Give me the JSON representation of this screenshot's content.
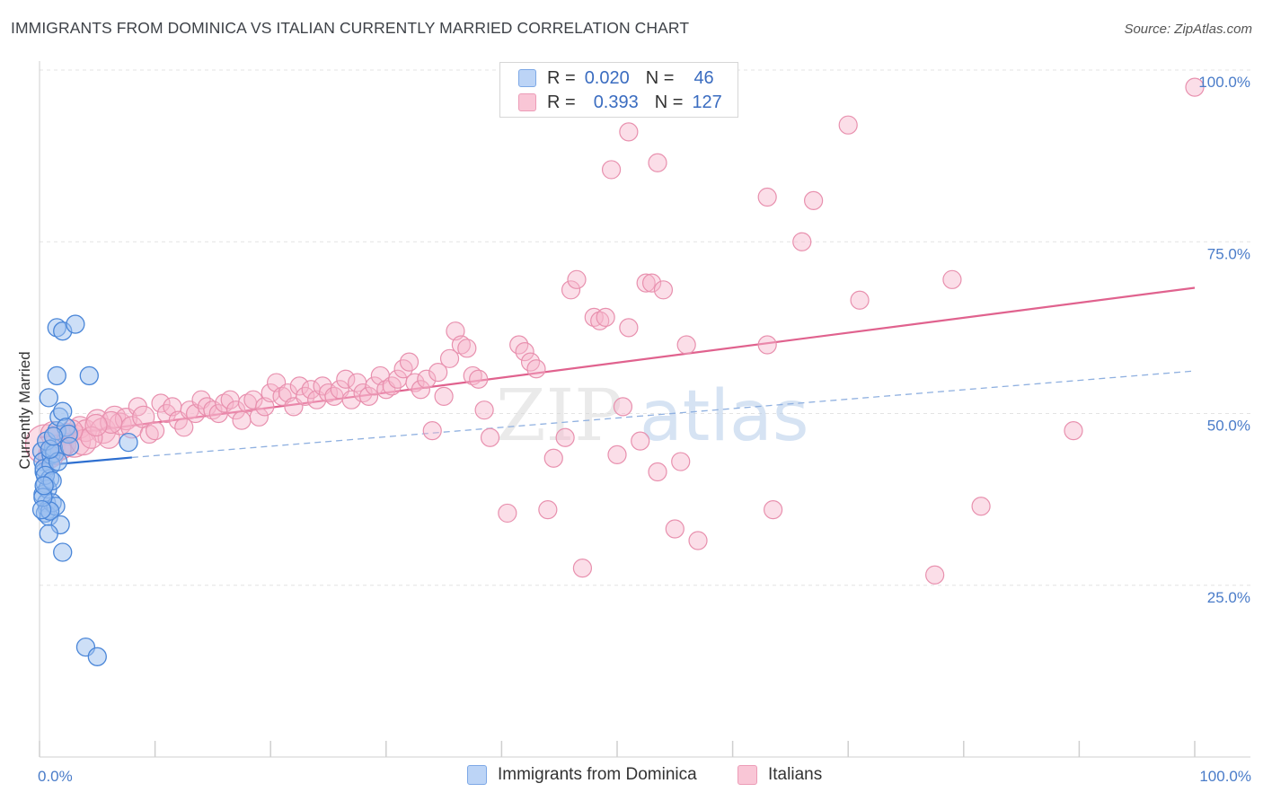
{
  "title": "IMMIGRANTS FROM DOMINICA VS ITALIAN CURRENTLY MARRIED CORRELATION CHART",
  "source": "Source: ZipAtlas.com",
  "watermark": {
    "zip": "ZIP",
    "atlas": "atlas"
  },
  "legend": {
    "series1": {
      "r_label": "R =",
      "r_value": "0.020",
      "n_label": "N =",
      "n_value": "46"
    },
    "series2": {
      "r_label": "R =",
      "r_value": "0.393",
      "n_label": "N =",
      "n_value": "127"
    }
  },
  "bottom_legend": {
    "series1": "Immigrants from Dominica",
    "series2": "Italians"
  },
  "colors": {
    "series1_fill": "#9bbff0",
    "series1_stroke": "#4a86d8",
    "series1_line": "#2e6fd0",
    "series2_fill": "#f6b6cb",
    "series2_stroke": "#e890ae",
    "series2_line": "#e0628e",
    "axis_text": "#4a7cc9",
    "grid": "#e3e3e3"
  },
  "chart_data": {
    "type": "scatter",
    "title": "IMMIGRANTS FROM DOMINICA VS ITALIAN CURRENTLY MARRIED CORRELATION CHART",
    "xlabel": "",
    "ylabel": "Currently Married",
    "xlim": [
      0,
      100
    ],
    "ylim": [
      0,
      100
    ],
    "x_tick_labels": [
      "0.0%",
      "100.0%"
    ],
    "y_ticks": [
      25,
      50,
      75,
      100
    ],
    "y_tick_labels": [
      "25.0%",
      "50.0%",
      "75.0%",
      "100.0%"
    ],
    "grid": true,
    "legend_position": "top-center",
    "series": [
      {
        "name": "Immigrants from Dominica",
        "R": 0.02,
        "N": 46,
        "trend": {
          "x": [
            0,
            8
          ],
          "y": [
            42.4,
            43.6
          ],
          "dashed_extension_to": [
            100,
            56.2
          ]
        },
        "points": [
          [
            0.2,
            44.5,
            10
          ],
          [
            0.3,
            43.0,
            10
          ],
          [
            0.4,
            41.5,
            10
          ],
          [
            0.5,
            39.8,
            10
          ],
          [
            0.3,
            38.2,
            10
          ],
          [
            0.6,
            37.0,
            10
          ],
          [
            0.7,
            36.0,
            10
          ],
          [
            0.5,
            35.5,
            10
          ],
          [
            0.8,
            35.0,
            10
          ],
          [
            0.4,
            42.0,
            10
          ],
          [
            0.9,
            40.5,
            10
          ],
          [
            1.0,
            44.0,
            10
          ],
          [
            1.2,
            45.0,
            10
          ],
          [
            0.6,
            46.0,
            10
          ],
          [
            1.5,
            47.5,
            10
          ],
          [
            1.7,
            49.5,
            10
          ],
          [
            2.0,
            50.3,
            10
          ],
          [
            1.5,
            62.5,
            10
          ],
          [
            2.0,
            62.0,
            10
          ],
          [
            3.1,
            63.0,
            10
          ],
          [
            1.5,
            55.5,
            10
          ],
          [
            4.3,
            55.5,
            10
          ],
          [
            0.8,
            52.3,
            10
          ],
          [
            2.3,
            48.0,
            10
          ],
          [
            2.5,
            47.0,
            10
          ],
          [
            1.3,
            44.2,
            10
          ],
          [
            1.0,
            42.5,
            10
          ],
          [
            1.6,
            43.0,
            10
          ],
          [
            0.7,
            39.0,
            10
          ],
          [
            1.1,
            37.0,
            10
          ],
          [
            1.4,
            36.5,
            10
          ],
          [
            0.9,
            35.8,
            10
          ],
          [
            1.8,
            33.8,
            10
          ],
          [
            0.8,
            32.5,
            10
          ],
          [
            2.0,
            29.8,
            10
          ],
          [
            4.0,
            16.0,
            10
          ],
          [
            5.0,
            14.6,
            10
          ],
          [
            7.7,
            45.8,
            10
          ],
          [
            0.5,
            41.0,
            10
          ],
          [
            1.1,
            40.2,
            10
          ],
          [
            0.3,
            37.8,
            10
          ],
          [
            0.2,
            36.0,
            10
          ],
          [
            0.9,
            44.8,
            10
          ],
          [
            1.2,
            46.7,
            10
          ],
          [
            2.6,
            45.2,
            10
          ],
          [
            0.4,
            39.5,
            10
          ]
        ]
      },
      {
        "name": "Italians",
        "R": 0.393,
        "N": 127,
        "trend": {
          "x": [
            0,
            100
          ],
          "y": [
            46.5,
            68.3
          ]
        },
        "points": [
          [
            0.5,
            45.5,
            22
          ],
          [
            1.0,
            44.0,
            14
          ],
          [
            1.5,
            46.5,
            12
          ],
          [
            2.0,
            45.0,
            12
          ],
          [
            2.5,
            47.0,
            12
          ],
          [
            3.0,
            46.0,
            18
          ],
          [
            3.5,
            48.0,
            12
          ],
          [
            4.0,
            47.5,
            12
          ],
          [
            5.0,
            49.0,
            12
          ],
          [
            5.5,
            47.5,
            14
          ],
          [
            6.0,
            46.5,
            12
          ],
          [
            6.5,
            49.5,
            12
          ],
          [
            7.0,
            48.5,
            12
          ],
          [
            7.5,
            49.2,
            12
          ],
          [
            8.0,
            48.0,
            12
          ],
          [
            8.5,
            51.0,
            10
          ],
          [
            9.0,
            49.5,
            12
          ],
          [
            9.5,
            47.0,
            10
          ],
          [
            10.0,
            47.5,
            10
          ],
          [
            10.5,
            51.5,
            10
          ],
          [
            11.0,
            50.0,
            10
          ],
          [
            11.5,
            51.0,
            10
          ],
          [
            12.0,
            49.0,
            10
          ],
          [
            12.5,
            48.0,
            10
          ],
          [
            13.0,
            50.5,
            10
          ],
          [
            13.5,
            50.0,
            10
          ],
          [
            14.0,
            52.0,
            10
          ],
          [
            14.5,
            51.0,
            10
          ],
          [
            15.0,
            50.5,
            10
          ],
          [
            15.5,
            50.0,
            10
          ],
          [
            16.0,
            51.5,
            10
          ],
          [
            16.5,
            52.0,
            10
          ],
          [
            17.0,
            50.5,
            10
          ],
          [
            17.5,
            49.0,
            10
          ],
          [
            18.0,
            51.5,
            10
          ],
          [
            18.5,
            52.0,
            10
          ],
          [
            19.0,
            49.5,
            10
          ],
          [
            19.5,
            51.0,
            10
          ],
          [
            20.0,
            53.0,
            10
          ],
          [
            20.5,
            54.5,
            10
          ],
          [
            21.0,
            52.5,
            10
          ],
          [
            21.5,
            53.0,
            10
          ],
          [
            22.0,
            51.0,
            10
          ],
          [
            22.5,
            54.0,
            10
          ],
          [
            23.0,
            52.5,
            10
          ],
          [
            23.5,
            53.5,
            10
          ],
          [
            24.0,
            52.0,
            10
          ],
          [
            24.5,
            54.0,
            10
          ],
          [
            25.0,
            53.0,
            10
          ],
          [
            25.5,
            52.5,
            10
          ],
          [
            26.0,
            53.5,
            10
          ],
          [
            26.5,
            55.0,
            10
          ],
          [
            27.0,
            52.0,
            10
          ],
          [
            27.5,
            54.5,
            10
          ],
          [
            28.0,
            53.0,
            10
          ],
          [
            28.5,
            52.5,
            10
          ],
          [
            29.0,
            54.0,
            10
          ],
          [
            29.5,
            55.5,
            10
          ],
          [
            30.0,
            53.5,
            10
          ],
          [
            30.5,
            54.0,
            10
          ],
          [
            31.0,
            55.0,
            10
          ],
          [
            31.5,
            56.5,
            10
          ],
          [
            32.0,
            57.5,
            10
          ],
          [
            32.5,
            54.5,
            10
          ],
          [
            33.0,
            53.5,
            10
          ],
          [
            33.5,
            55.0,
            10
          ],
          [
            34.0,
            47.5,
            10
          ],
          [
            34.5,
            56.0,
            10
          ],
          [
            35.0,
            52.5,
            10
          ],
          [
            35.5,
            58.0,
            10
          ],
          [
            36.0,
            62.0,
            10
          ],
          [
            36.5,
            60.0,
            10
          ],
          [
            37.0,
            59.5,
            10
          ],
          [
            37.5,
            55.5,
            10
          ],
          [
            38.0,
            55.0,
            10
          ],
          [
            38.5,
            50.5,
            10
          ],
          [
            39.0,
            46.5,
            10
          ],
          [
            41.5,
            60.0,
            10
          ],
          [
            40.5,
            35.5,
            10
          ],
          [
            42.0,
            59.0,
            10
          ],
          [
            42.5,
            57.5,
            10
          ],
          [
            43.0,
            56.5,
            10
          ],
          [
            44.0,
            36.0,
            10
          ],
          [
            44.5,
            43.5,
            10
          ],
          [
            45.5,
            46.5,
            10
          ],
          [
            46.0,
            68.0,
            10
          ],
          [
            46.5,
            69.5,
            10
          ],
          [
            47.0,
            27.5,
            10
          ],
          [
            48.0,
            64.0,
            10
          ],
          [
            48.5,
            63.5,
            10
          ],
          [
            49.0,
            64.0,
            10
          ],
          [
            50.0,
            44.0,
            10
          ],
          [
            50.5,
            51.0,
            10
          ],
          [
            51.0,
            62.5,
            10
          ],
          [
            52.0,
            46.0,
            10
          ],
          [
            52.5,
            69.0,
            10
          ],
          [
            53.0,
            69.0,
            10
          ],
          [
            53.5,
            41.5,
            10
          ],
          [
            54.0,
            68.0,
            10
          ],
          [
            55.0,
            33.2,
            10
          ],
          [
            55.5,
            43.0,
            10
          ],
          [
            56.0,
            60.0,
            10
          ],
          [
            57.0,
            31.5,
            10
          ],
          [
            63.0,
            60.0,
            10
          ],
          [
            63.5,
            36.0,
            10
          ],
          [
            66.0,
            75.0,
            10
          ],
          [
            63.0,
            81.5,
            10
          ],
          [
            67.0,
            81.0,
            10
          ],
          [
            71.0,
            66.5,
            10
          ],
          [
            70.0,
            92.0,
            10
          ],
          [
            51.0,
            91.0,
            10
          ],
          [
            53.5,
            86.5,
            10
          ],
          [
            49.5,
            85.5,
            10
          ],
          [
            79.0,
            69.5,
            10
          ],
          [
            77.5,
            26.5,
            10
          ],
          [
            81.5,
            36.5,
            10
          ],
          [
            89.5,
            47.5,
            10
          ],
          [
            100.0,
            97.5,
            10
          ],
          [
            1.2,
            47.0,
            14
          ],
          [
            2.2,
            45.5,
            12
          ],
          [
            3.8,
            45.8,
            14
          ],
          [
            4.5,
            46.5,
            12
          ],
          [
            6.2,
            48.7,
            12
          ],
          [
            0.8,
            43.5,
            12
          ],
          [
            1.8,
            44.8,
            12
          ],
          [
            2.8,
            47.5,
            12
          ],
          [
            4.9,
            48.3,
            12
          ]
        ]
      }
    ]
  }
}
